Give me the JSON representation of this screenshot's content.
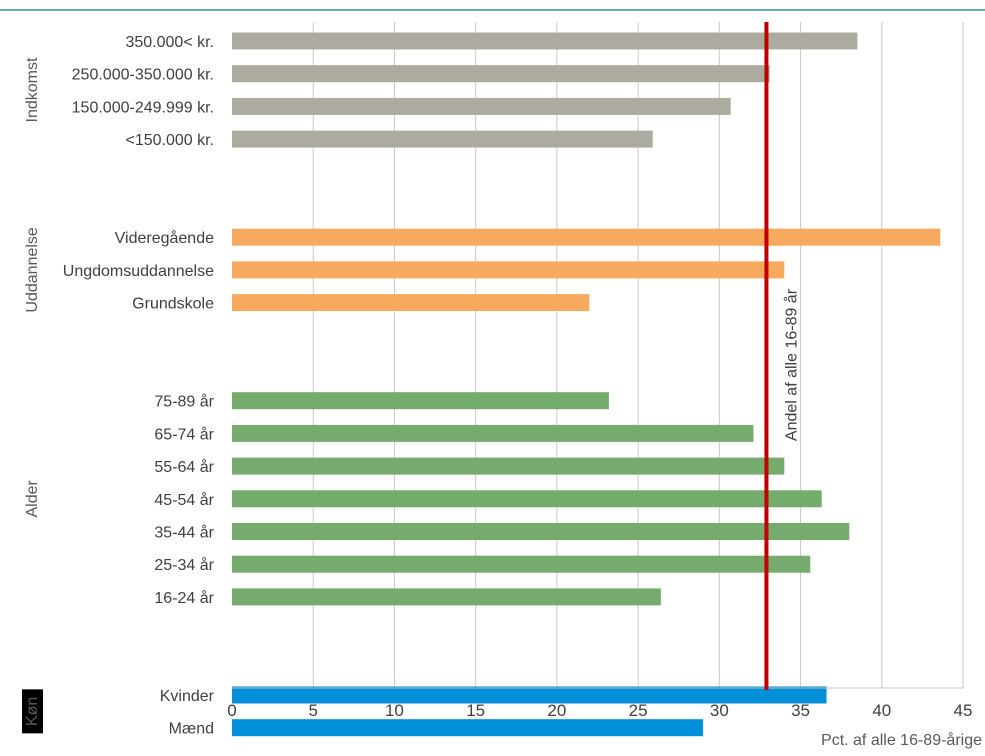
{
  "chart_data": {
    "type": "bar",
    "orientation": "horizontal",
    "xlabel": "Pct. af alle 16-89-årige",
    "xlim": [
      0,
      45
    ],
    "xticks": [
      0,
      5,
      10,
      15,
      20,
      25,
      30,
      35,
      40,
      45
    ],
    "grid": true,
    "reference_line": {
      "value": 32.9,
      "label": "Andel af alle 16-89 år",
      "color": "#C00000"
    },
    "groups": [
      {
        "label": "Indkomst",
        "color": "#ADABA0",
        "label_style": "plain",
        "items": [
          {
            "label": "350.000< kr.",
            "value": 38.5
          },
          {
            "label": "250.000-350.000 kr.",
            "value": 33.1
          },
          {
            "label": "150.000-249.999 kr.",
            "value": 30.7
          },
          {
            "label": "<150.000 kr.",
            "value": 25.9
          }
        ]
      },
      {
        "label": "Uddannelse",
        "color": "#F7A95E",
        "label_style": "plain",
        "items": [
          {
            "label": "Videregående",
            "value": 43.6
          },
          {
            "label": "Ungdomsuddannelse",
            "value": 34.0
          },
          {
            "label": "Grundskole",
            "value": 22.0
          }
        ]
      },
      {
        "label": "Alder",
        "color": "#76AB6E",
        "label_style": "plain",
        "items": [
          {
            "label": "75-89 år",
            "value": 23.2
          },
          {
            "label": "65-74 år",
            "value": 32.1
          },
          {
            "label": "55-64 år",
            "value": 34.0
          },
          {
            "label": "45-54 år",
            "value": 36.3
          },
          {
            "label": "35-44 år",
            "value": 38.0
          },
          {
            "label": "25-34 år",
            "value": 35.6
          },
          {
            "label": "16-24 år",
            "value": 26.4
          }
        ]
      },
      {
        "label": "Køn",
        "color": "#008FD8",
        "label_style": "boxed",
        "items": [
          {
            "label": "Kvinder",
            "value": 36.6
          },
          {
            "label": "Mænd",
            "value": 29.0
          }
        ]
      }
    ]
  }
}
